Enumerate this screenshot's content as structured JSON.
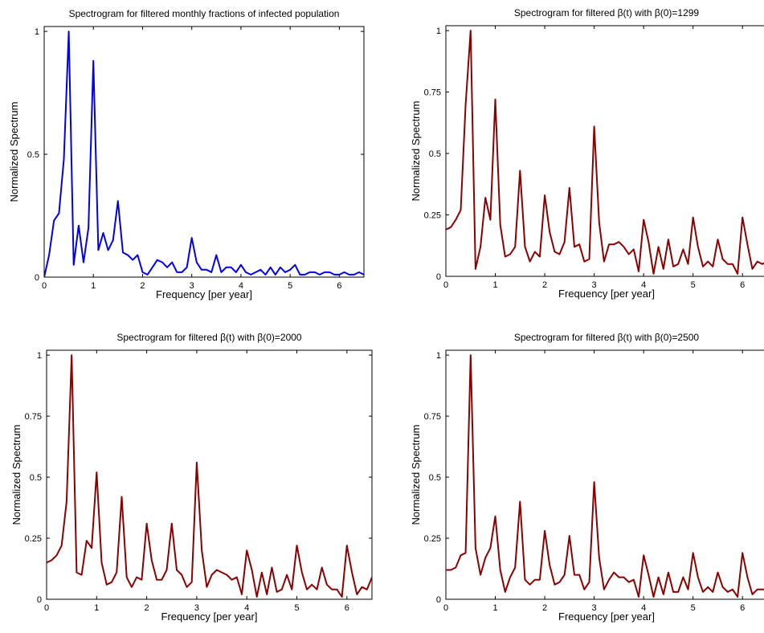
{
  "chart_data": [
    {
      "type": "line",
      "title": "Spectrogram for filtered monthly fractions of infected population",
      "xlabel": "Frequency [per year]",
      "ylabel": "Normalized Spectrum",
      "xlim": [
        0,
        6.5
      ],
      "ylim": [
        0,
        1.02
      ],
      "xticks": [
        "0",
        "1",
        "2",
        "3",
        "4",
        "5",
        "6"
      ],
      "xtick_values": [
        0,
        1,
        2,
        3,
        4,
        5,
        6
      ],
      "yticks": [
        "0",
        "0.5",
        "1"
      ],
      "ytick_values": [
        0,
        0.5,
        1
      ],
      "grid": false,
      "color": "#0000ee",
      "series": [
        {
          "x": [
            0,
            0.1,
            0.2,
            0.3,
            0.4,
            0.5,
            0.6,
            0.7,
            0.8,
            0.9,
            1.0,
            1.1,
            1.2,
            1.3,
            1.4,
            1.5,
            1.6,
            1.7,
            1.8,
            1.9,
            2.0,
            2.1,
            2.2,
            2.3,
            2.4,
            2.5,
            2.6,
            2.7,
            2.8,
            2.9,
            3.0,
            3.1,
            3.2,
            3.3,
            3.4,
            3.5,
            3.6,
            3.7,
            3.8,
            3.9,
            4.0,
            4.1,
            4.2,
            4.3,
            4.4,
            4.5,
            4.6,
            4.7,
            4.8,
            4.9,
            5.0,
            5.1,
            5.2,
            5.3,
            5.4,
            5.5,
            5.6,
            5.7,
            5.8,
            5.9,
            6.0,
            6.1,
            6.2,
            6.3,
            6.4,
            6.5
          ],
          "values": [
            0.0,
            0.09,
            0.23,
            0.26,
            0.48,
            1.0,
            0.05,
            0.21,
            0.06,
            0.2,
            0.88,
            0.11,
            0.18,
            0.11,
            0.15,
            0.31,
            0.1,
            0.09,
            0.07,
            0.09,
            0.02,
            0.01,
            0.04,
            0.07,
            0.06,
            0.04,
            0.06,
            0.02,
            0.02,
            0.04,
            0.16,
            0.06,
            0.03,
            0.03,
            0.02,
            0.09,
            0.02,
            0.04,
            0.04,
            0.02,
            0.05,
            0.02,
            0.01,
            0.02,
            0.03,
            0.01,
            0.04,
            0.01,
            0.04,
            0.02,
            0.03,
            0.05,
            0.01,
            0.01,
            0.02,
            0.02,
            0.01,
            0.02,
            0.02,
            0.01,
            0.01,
            0.02,
            0.01,
            0.01,
            0.02,
            0.01
          ]
        }
      ]
    },
    {
      "type": "line",
      "title": "Spectrogram for filtered β(t) with β(0)=1299",
      "xlabel": "Frequency [per year]",
      "ylabel": "Normalized Spectrum",
      "xlim": [
        0,
        6.5
      ],
      "ylim": [
        0,
        1.02
      ],
      "xticks": [
        "0",
        "1",
        "2",
        "3",
        "4",
        "5",
        "6"
      ],
      "xtick_values": [
        0,
        1,
        2,
        3,
        4,
        5,
        6
      ],
      "yticks": [
        "0",
        "0.25",
        "0.5",
        "0.75",
        "1"
      ],
      "ytick_values": [
        0,
        0.25,
        0.5,
        0.75,
        1
      ],
      "grid": false,
      "color": "#8b0000",
      "series": [
        {
          "x": [
            0,
            0.1,
            0.2,
            0.3,
            0.4,
            0.5,
            0.6,
            0.7,
            0.8,
            0.9,
            1.0,
            1.1,
            1.2,
            1.3,
            1.4,
            1.5,
            1.6,
            1.7,
            1.8,
            1.9,
            2.0,
            2.1,
            2.2,
            2.3,
            2.4,
            2.5,
            2.6,
            2.7,
            2.8,
            2.9,
            3.0,
            3.1,
            3.2,
            3.3,
            3.4,
            3.5,
            3.6,
            3.7,
            3.8,
            3.9,
            4.0,
            4.1,
            4.2,
            4.3,
            4.4,
            4.5,
            4.6,
            4.7,
            4.8,
            4.9,
            5.0,
            5.1,
            5.2,
            5.3,
            5.4,
            5.5,
            5.6,
            5.7,
            5.8,
            5.9,
            6.0,
            6.1,
            6.2,
            6.3,
            6.4,
            6.5
          ],
          "values": [
            0.19,
            0.2,
            0.23,
            0.27,
            0.7,
            1.0,
            0.03,
            0.12,
            0.32,
            0.23,
            0.72,
            0.21,
            0.08,
            0.09,
            0.12,
            0.43,
            0.12,
            0.06,
            0.1,
            0.08,
            0.33,
            0.18,
            0.1,
            0.09,
            0.14,
            0.36,
            0.12,
            0.13,
            0.06,
            0.07,
            0.61,
            0.22,
            0.06,
            0.13,
            0.13,
            0.14,
            0.12,
            0.09,
            0.11,
            0.02,
            0.23,
            0.14,
            0.01,
            0.12,
            0.03,
            0.15,
            0.04,
            0.05,
            0.11,
            0.05,
            0.24,
            0.12,
            0.04,
            0.06,
            0.04,
            0.15,
            0.07,
            0.05,
            0.05,
            0.01,
            0.24,
            0.13,
            0.03,
            0.06,
            0.05,
            0.06
          ]
        }
      ]
    },
    {
      "type": "line",
      "title": "Spectrogram for filtered β(t) with β(0)=2000",
      "xlabel": "Frequency [per year]",
      "ylabel": "Normalized Spectrum",
      "xlim": [
        0,
        6.5
      ],
      "ylim": [
        0,
        1.02
      ],
      "xticks": [
        "0",
        "1",
        "2",
        "3",
        "4",
        "5",
        "6"
      ],
      "xtick_values": [
        0,
        1,
        2,
        3,
        4,
        5,
        6
      ],
      "yticks": [
        "0",
        "0.25",
        "0.5",
        "0.75",
        "1"
      ],
      "ytick_values": [
        0,
        0.25,
        0.5,
        0.75,
        1
      ],
      "grid": false,
      "color": "#8b0000",
      "series": [
        {
          "x": [
            0,
            0.1,
            0.2,
            0.3,
            0.4,
            0.5,
            0.6,
            0.7,
            0.8,
            0.9,
            1.0,
            1.1,
            1.2,
            1.3,
            1.4,
            1.5,
            1.6,
            1.7,
            1.8,
            1.9,
            2.0,
            2.1,
            2.2,
            2.3,
            2.4,
            2.5,
            2.6,
            2.7,
            2.8,
            2.9,
            3.0,
            3.1,
            3.2,
            3.3,
            3.4,
            3.5,
            3.6,
            3.7,
            3.8,
            3.9,
            4.0,
            4.1,
            4.2,
            4.3,
            4.4,
            4.5,
            4.6,
            4.7,
            4.8,
            4.9,
            5.0,
            5.1,
            5.2,
            5.3,
            5.4,
            5.5,
            5.6,
            5.7,
            5.8,
            5.9,
            6.0,
            6.1,
            6.2,
            6.3,
            6.4,
            6.5
          ],
          "values": [
            0.15,
            0.16,
            0.18,
            0.22,
            0.4,
            1.0,
            0.11,
            0.1,
            0.24,
            0.21,
            0.52,
            0.15,
            0.06,
            0.07,
            0.11,
            0.42,
            0.09,
            0.05,
            0.09,
            0.08,
            0.31,
            0.16,
            0.08,
            0.08,
            0.12,
            0.31,
            0.12,
            0.1,
            0.05,
            0.07,
            0.56,
            0.2,
            0.05,
            0.1,
            0.12,
            0.11,
            0.1,
            0.08,
            0.09,
            0.02,
            0.2,
            0.12,
            0.01,
            0.11,
            0.02,
            0.13,
            0.03,
            0.04,
            0.1,
            0.04,
            0.22,
            0.11,
            0.04,
            0.06,
            0.04,
            0.13,
            0.06,
            0.04,
            0.04,
            0.01,
            0.22,
            0.11,
            0.02,
            0.05,
            0.04,
            0.09
          ]
        }
      ]
    },
    {
      "type": "line",
      "title": "Spectrogram for filtered β(t) with β(0)=2500",
      "xlabel": "Frequency [per year]",
      "ylabel": "Normalized Spectrum",
      "xlim": [
        0,
        6.5
      ],
      "ylim": [
        0,
        1.02
      ],
      "xticks": [
        "0",
        "1",
        "2",
        "3",
        "4",
        "5",
        "6"
      ],
      "xtick_values": [
        0,
        1,
        2,
        3,
        4,
        5,
        6
      ],
      "yticks": [
        "0",
        "0.25",
        "0.5",
        "0.75",
        "1"
      ],
      "ytick_values": [
        0,
        0.25,
        0.5,
        0.75,
        1
      ],
      "grid": false,
      "color": "#8b0000",
      "series": [
        {
          "x": [
            0,
            0.1,
            0.2,
            0.3,
            0.4,
            0.5,
            0.6,
            0.7,
            0.8,
            0.9,
            1.0,
            1.1,
            1.2,
            1.3,
            1.4,
            1.5,
            1.6,
            1.7,
            1.8,
            1.9,
            2.0,
            2.1,
            2.2,
            2.3,
            2.4,
            2.5,
            2.6,
            2.7,
            2.8,
            2.9,
            3.0,
            3.1,
            3.2,
            3.3,
            3.4,
            3.5,
            3.6,
            3.7,
            3.8,
            3.9,
            4.0,
            4.1,
            4.2,
            4.3,
            4.4,
            4.5,
            4.6,
            4.7,
            4.8,
            4.9,
            5.0,
            5.1,
            5.2,
            5.3,
            5.4,
            5.5,
            5.6,
            5.7,
            5.8,
            5.9,
            6.0,
            6.1,
            6.2,
            6.3,
            6.4,
            6.5
          ],
          "values": [
            0.12,
            0.12,
            0.13,
            0.18,
            0.19,
            1.0,
            0.21,
            0.1,
            0.17,
            0.21,
            0.34,
            0.12,
            0.03,
            0.09,
            0.13,
            0.4,
            0.08,
            0.06,
            0.08,
            0.08,
            0.28,
            0.14,
            0.06,
            0.07,
            0.1,
            0.26,
            0.1,
            0.1,
            0.04,
            0.07,
            0.48,
            0.17,
            0.04,
            0.08,
            0.11,
            0.09,
            0.09,
            0.07,
            0.08,
            0.01,
            0.18,
            0.1,
            0.01,
            0.09,
            0.02,
            0.11,
            0.03,
            0.03,
            0.09,
            0.04,
            0.19,
            0.09,
            0.03,
            0.05,
            0.03,
            0.11,
            0.05,
            0.03,
            0.04,
            0.01,
            0.19,
            0.09,
            0.02,
            0.04,
            0.04,
            0.04
          ]
        }
      ]
    }
  ]
}
